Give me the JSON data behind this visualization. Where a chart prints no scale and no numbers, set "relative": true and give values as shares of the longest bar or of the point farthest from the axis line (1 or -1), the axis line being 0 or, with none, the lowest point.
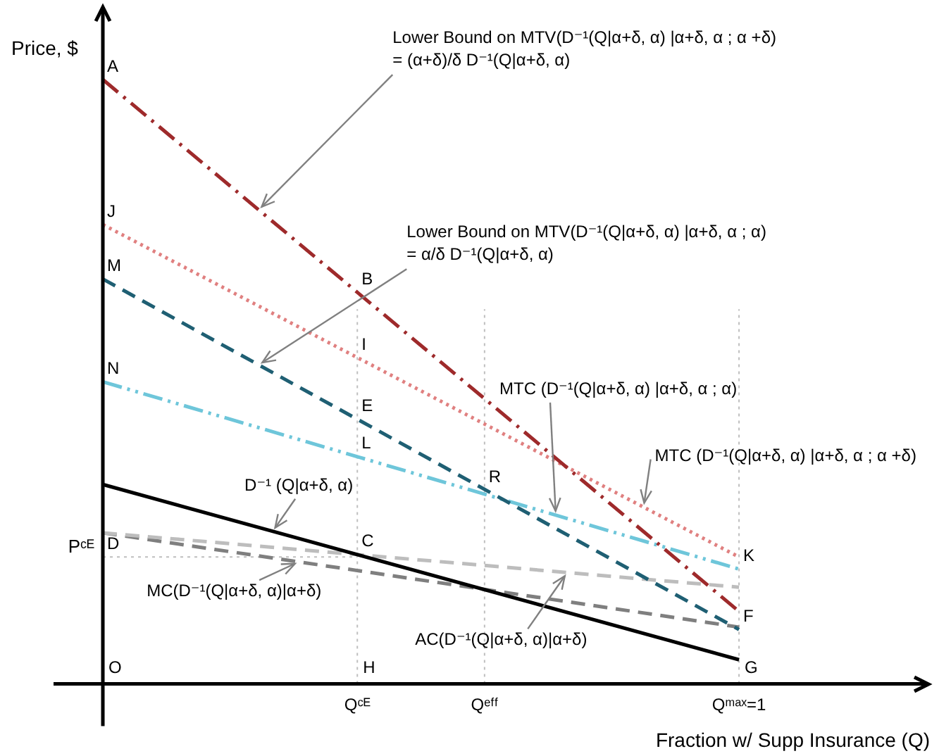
{
  "chart_data": {
    "type": "line",
    "relative": true,
    "xlabel": "Fraction w/ Supp Insurance (Q)",
    "ylabel": "Price, $",
    "categories": [
      null,
      null,
      null,
      null,
      null,
      null,
      null,
      null,
      "Qᶜᴱ",
      null,
      null,
      null,
      "Qᵉᶠᶠ",
      null,
      null,
      null,
      null,
      null,
      null,
      null,
      "Qᵐᵃˣ=1",
      null,
      null,
      null,
      null,
      null,
      null
    ],
    "series": [
      {
        "color": "#9e2a2b",
        "values": [
          1,
          null,
          null,
          null,
          null,
          null,
          null,
          null,
          null,
          null,
          null,
          null,
          null,
          null,
          null,
          null,
          null,
          null,
          null,
          null,
          0.12,
          null,
          null,
          null,
          null,
          null,
          null
        ],
        "line_style": "dashdot"
      },
      {
        "color": "#e08080",
        "values": [
          0.76,
          null,
          null,
          null,
          null,
          null,
          null,
          null,
          null,
          null,
          null,
          null,
          null,
          null,
          null,
          null,
          null,
          null,
          null,
          null,
          0.21,
          null,
          null,
          null,
          null,
          null,
          null
        ],
        "line_style": "dotted"
      },
      {
        "color": "#1f5f73",
        "values": [
          0.67,
          null,
          null,
          null,
          null,
          null,
          null,
          null,
          null,
          null,
          null,
          null,
          null,
          null,
          null,
          null,
          null,
          null,
          null,
          null,
          0.09,
          null,
          null,
          null,
          null,
          null,
          null
        ],
        "line_style": "dashed"
      },
      {
        "color": "#6ec6da",
        "values": [
          0.5,
          null,
          null,
          null,
          null,
          null,
          null,
          null,
          null,
          null,
          null,
          null,
          null,
          null,
          null,
          null,
          null,
          null,
          null,
          null,
          0.19,
          null,
          null,
          null,
          null,
          null,
          null
        ],
        "line_style": "dashdotdot"
      },
      {
        "color": "#000000",
        "values": [
          0.33,
          null,
          null,
          null,
          null,
          null,
          null,
          null,
          null,
          null,
          null,
          null,
          null,
          null,
          null,
          null,
          null,
          null,
          null,
          null,
          0.04,
          null,
          null,
          null,
          null,
          null,
          null
        ],
        "line_style": "solid"
      },
      {
        "color": "#bdbdbd",
        "values": [
          0.25,
          null,
          null,
          null,
          null,
          null,
          null,
          null,
          null,
          null,
          null,
          null,
          null,
          null,
          null,
          null,
          null,
          null,
          null,
          null,
          0.16,
          null,
          null,
          null,
          null,
          null,
          null
        ],
        "line_style": "dashed"
      },
      {
        "color": "#7f7f7f",
        "values": [
          0.25,
          null,
          null,
          null,
          null,
          null,
          null,
          null,
          null,
          null,
          null,
          null,
          null,
          null,
          null,
          null,
          null,
          null,
          null,
          null,
          0.094,
          null,
          null,
          null,
          null,
          null,
          null
        ],
        "line_style": "dashed"
      }
    ],
    "ref_lines": [
      {
        "axis": "y",
        "value": 0.21,
        "label": "Pᶜᴱ",
        "color": "#bfbfbf",
        "line_style": "dotted"
      }
    ],
    "annotations": [
      "Lower Bound on MTV(D⁻¹(Q|α+δ, α) |α+δ, α ; α +δ)\n= (α+δ)/δ D⁻¹(Q|α+δ, α)",
      "Lower Bound on MTV(D⁻¹(Q|α+δ, α) |α+δ, α ; α)\n= α/δ D⁻¹(Q|α+δ, α)",
      "MTC (D⁻¹(Q|α+δ, α) |α+δ, α ; α +δ)",
      "MTC (D⁻¹(Q|α+δ, α) |α+δ, α ; α)",
      "D⁻¹ (Q|α+δ, α)",
      "MC(D⁻¹(Q|α+δ, α)|α+δ)",
      "AC(D⁻¹(Q|α+δ, α)|α+δ)",
      {
        "text": "A",
        "y": 1
      },
      {
        "text": "J",
        "y": 0.76
      },
      {
        "text": "M",
        "y": 0.67
      },
      {
        "text": "N",
        "y": 0.5
      },
      {
        "text": "B",
        "x": "Qᶜᴱ",
        "y": 0.648
      },
      {
        "text": "I",
        "x": "Qᶜᴱ",
        "y": 0.54
      },
      {
        "text": "E",
        "x": "Qᶜᴱ",
        "y": 0.438
      },
      {
        "text": "L",
        "x": "Qᶜᴱ",
        "y": 0.376
      },
      {
        "text": "R",
        "x": "Qᵉᶠᶠ",
        "y": 0.32
      },
      {
        "text": "C",
        "x": "Qᶜᴱ",
        "y": 0.214
      },
      {
        "text": "D",
        "y": 0.21
      },
      "O",
      "H",
      {
        "text": "K",
        "x": "Qᵐᵃˣ=1",
        "y": 0.19
      },
      {
        "text": "F",
        "x": "Qᵐᵃˣ=1",
        "y": 0.09
      },
      "G"
    ],
    "legend": false,
    "grid": "x"
  }
}
